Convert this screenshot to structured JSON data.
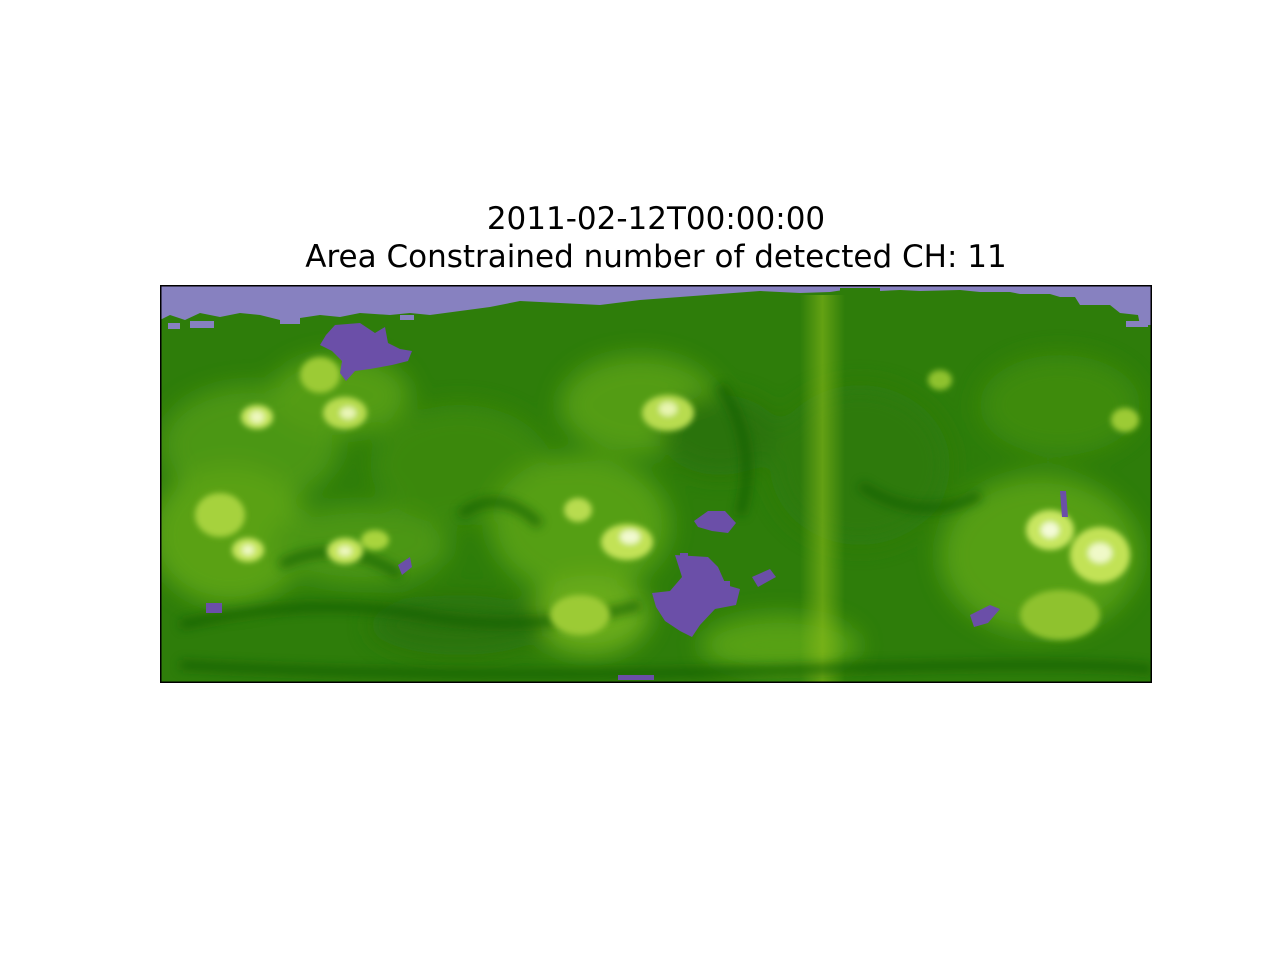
{
  "figure": {
    "title_line1": "2011-02-12T00:00:00",
    "title_line2": "Area Constrained number of detected CH: 11"
  },
  "map": {
    "background_color": "#2e7d0a",
    "coronal_hole_color": "#6b4fa8",
    "polar_hole_color": "#8781c0",
    "detected_ch_count": 11
  }
}
